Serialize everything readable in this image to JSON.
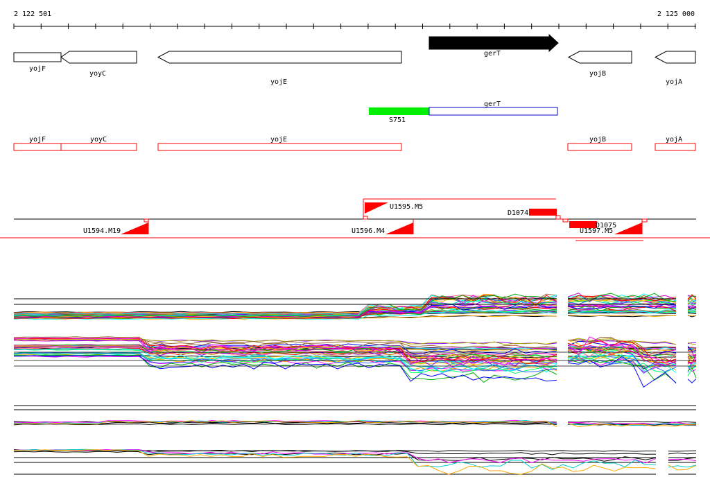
{
  "ruler": {
    "start_label": "2 122 501",
    "end_label": "2 125 000"
  },
  "genes": [
    {
      "name": "yojF",
      "strand": "-"
    },
    {
      "name": "yoyC",
      "strand": "-"
    },
    {
      "name": "yojE",
      "strand": "-"
    },
    {
      "name": "gerT",
      "strand": "+",
      "highlight": true
    },
    {
      "name": "yojB",
      "strand": "-"
    },
    {
      "name": "yojA",
      "strand": "-"
    }
  ],
  "transcripts": [
    {
      "name": "S751",
      "color": "#00ee00"
    },
    {
      "name": "gerT",
      "color": "#0000cc"
    }
  ],
  "annotation_boxes": [
    "yojF",
    "yoyC",
    "yojE",
    "yojB",
    "yojA"
  ],
  "segments": [
    "U1595.M5",
    "D1074",
    "D1075",
    "U1594.M19",
    "U1596.M4",
    "U1597.M5"
  ],
  "colors": {
    "gene": "#000000",
    "box": "#ff0000",
    "green": "#00ee00",
    "blue": "#0000cc"
  }
}
